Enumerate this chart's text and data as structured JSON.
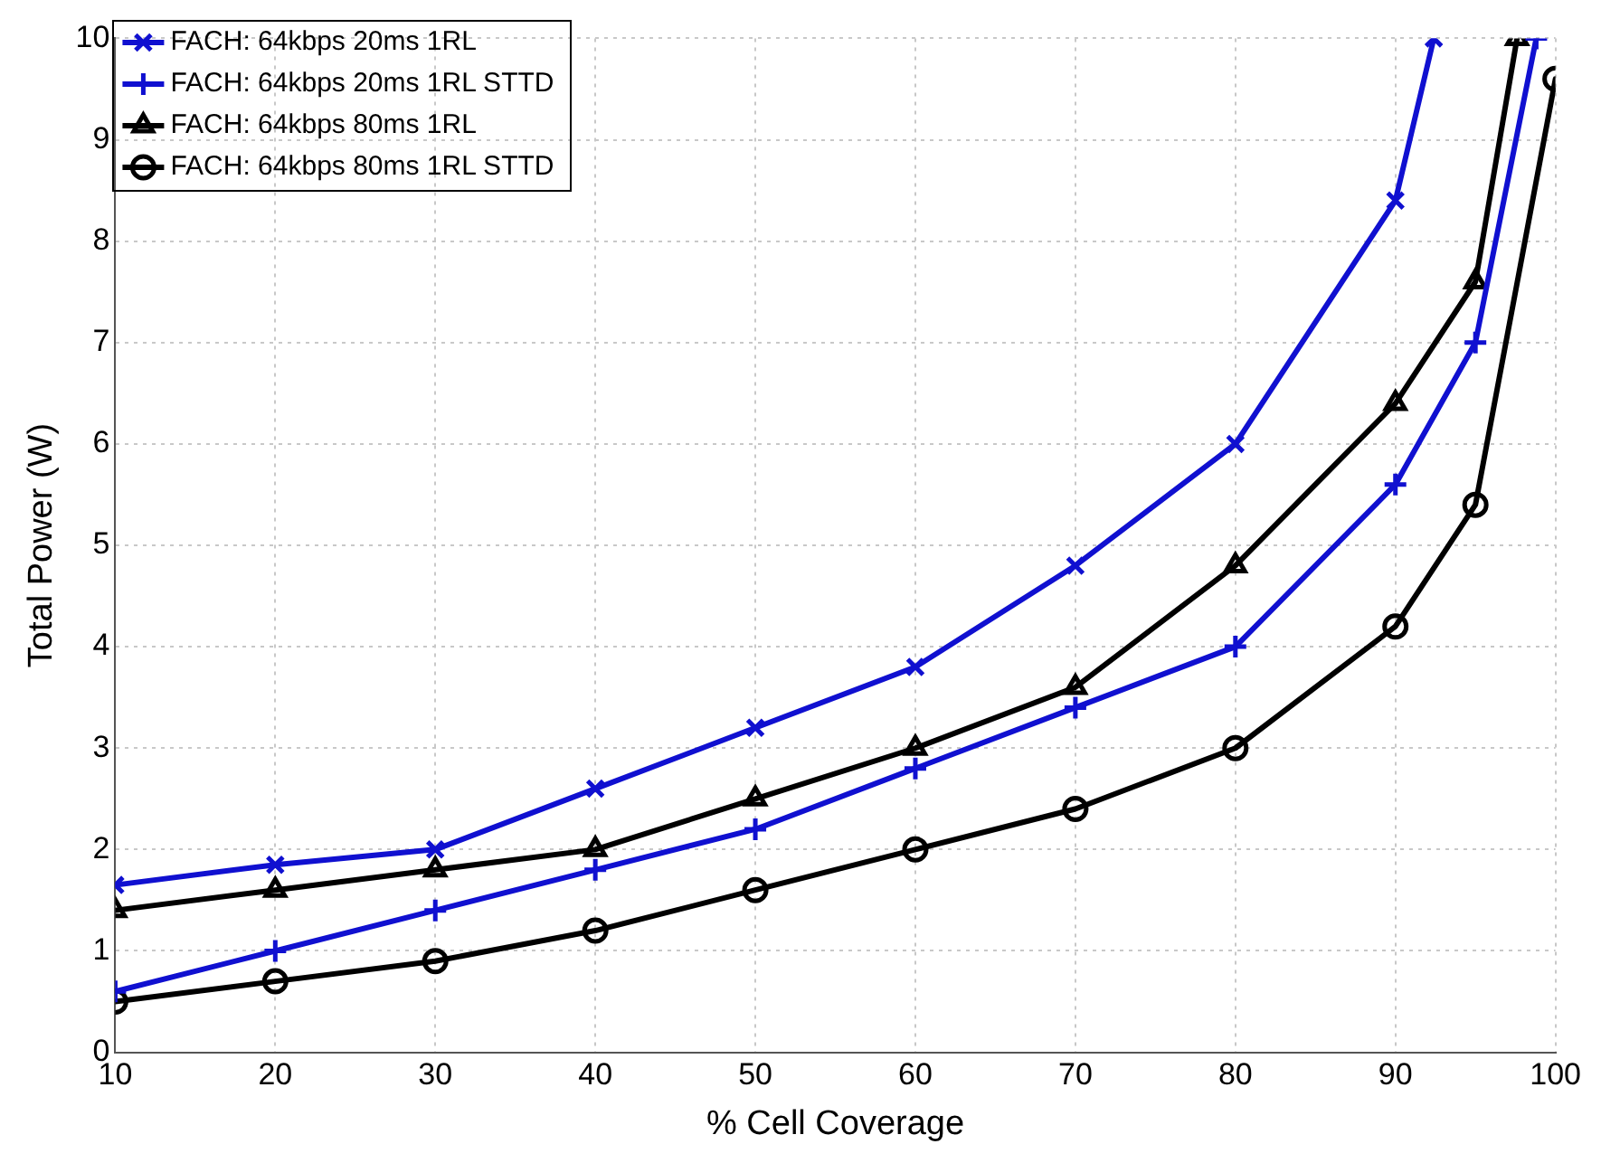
{
  "chart_data": {
    "type": "line",
    "xlabel": "% Cell Coverage",
    "ylabel": "Total Power (W)",
    "xlim": [
      10,
      100
    ],
    "xticks": [
      10,
      20,
      30,
      40,
      50,
      60,
      70,
      80,
      90,
      100
    ],
    "ylim": [
      0,
      10
    ],
    "yticks": [
      0,
      1,
      2,
      3,
      4,
      5,
      6,
      7,
      8,
      9,
      10
    ],
    "grid": true,
    "legend": "top left",
    "line_style": "solid",
    "series": [
      {
        "name": "FACH: 64kbps 20ms 1RL",
        "color": "#1010d0",
        "marker": "cross",
        "x": [
          10,
          20,
          30,
          40,
          50,
          60,
          70,
          80,
          90,
          92.4
        ],
        "values": [
          1.65,
          1.85,
          2.0,
          2.6,
          3.2,
          3.8,
          4.8,
          6.0,
          8.4,
          10
        ]
      },
      {
        "name": "FACH: 64kbps 20ms 1RL STTD",
        "color": "#1010d0",
        "marker": "plus",
        "x": [
          10,
          20,
          30,
          40,
          50,
          60,
          70,
          80,
          90,
          95,
          98.8
        ],
        "values": [
          0.6,
          1.0,
          1.4,
          1.8,
          2.2,
          2.8,
          3.4,
          4.0,
          5.6,
          7.0,
          10
        ]
      },
      {
        "name": "FACH: 64kbps 80ms 1RL",
        "color": "#000000",
        "marker": "triangle",
        "x": [
          10,
          20,
          30,
          40,
          50,
          60,
          70,
          80,
          90,
          95,
          97.6
        ],
        "values": [
          1.4,
          1.6,
          1.8,
          2.0,
          2.5,
          3.0,
          3.6,
          4.8,
          6.4,
          7.6,
          10
        ]
      },
      {
        "name": "FACH: 64kbps 80ms 1RL STTD",
        "color": "#000000",
        "marker": "circle",
        "x": [
          10,
          20,
          30,
          40,
          50,
          60,
          70,
          80,
          90,
          95,
          100
        ],
        "values": [
          0.5,
          0.7,
          0.9,
          1.2,
          1.6,
          2.0,
          2.4,
          3.0,
          4.2,
          5.4,
          9.6
        ]
      }
    ]
  }
}
